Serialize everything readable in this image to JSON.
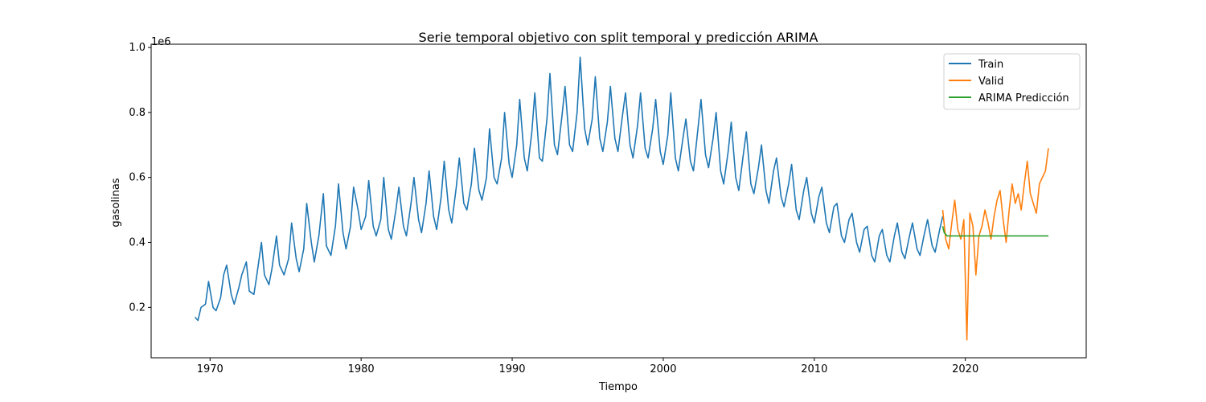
{
  "chart_data": {
    "type": "line",
    "title": "Serie temporal objetivo con split temporal y predicción ARIMA",
    "xlabel": "Tiempo",
    "ylabel": "gasolinas",
    "y_multiplier_label": "1e6",
    "xlim": [
      1966.1,
      2028.0
    ],
    "ylim": [
      0.045,
      1.01
    ],
    "x_ticks": [
      1970,
      1980,
      1990,
      2000,
      2010,
      2020
    ],
    "y_ticks": [
      0.2,
      0.4,
      0.6,
      0.8,
      1.0
    ],
    "y_tick_labels": [
      "0.2",
      "0.4",
      "0.6",
      "0.8",
      "1.0"
    ],
    "grid": false,
    "legend_position": "top-right",
    "series": [
      {
        "name": "Train",
        "color": "#1f77b4",
        "x": [
          1969.0,
          1969.2,
          1969.4,
          1969.7,
          1969.9,
          1970.2,
          1970.4,
          1970.7,
          1970.9,
          1971.1,
          1971.4,
          1971.6,
          1971.9,
          1972.1,
          1972.4,
          1972.6,
          1972.9,
          1973.1,
          1973.4,
          1973.6,
          1973.9,
          1974.1,
          1974.4,
          1974.6,
          1974.9,
          1975.2,
          1975.4,
          1975.7,
          1975.9,
          1976.2,
          1976.4,
          1976.7,
          1976.9,
          1977.2,
          1977.5,
          1977.7,
          1978.0,
          1978.3,
          1978.5,
          1978.8,
          1979.0,
          1979.3,
          1979.5,
          1979.8,
          1980.0,
          1980.3,
          1980.5,
          1980.8,
          1981.0,
          1981.3,
          1981.5,
          1981.8,
          1982.0,
          1982.3,
          1982.5,
          1982.8,
          1983.0,
          1983.3,
          1983.5,
          1983.8,
          1984.0,
          1984.3,
          1984.5,
          1984.8,
          1985.0,
          1985.3,
          1985.5,
          1985.8,
          1986.0,
          1986.3,
          1986.5,
          1986.8,
          1987.0,
          1987.3,
          1987.5,
          1987.8,
          1988.0,
          1988.3,
          1988.5,
          1988.8,
          1989.0,
          1989.3,
          1989.5,
          1989.8,
          1990.0,
          1990.3,
          1990.5,
          1990.8,
          1991.0,
          1991.3,
          1991.5,
          1991.8,
          1992.0,
          1992.3,
          1992.5,
          1992.8,
          1993.0,
          1993.3,
          1993.5,
          1993.8,
          1994.0,
          1994.3,
          1994.5,
          1994.8,
          1995.0,
          1995.3,
          1995.5,
          1995.8,
          1996.0,
          1996.3,
          1996.5,
          1996.8,
          1997.0,
          1997.3,
          1997.5,
          1997.8,
          1998.0,
          1998.3,
          1998.5,
          1998.8,
          1999.0,
          1999.3,
          1999.5,
          1999.8,
          2000.0,
          2000.3,
          2000.5,
          2000.8,
          2001.0,
          2001.3,
          2001.5,
          2001.8,
          2002.0,
          2002.3,
          2002.5,
          2002.8,
          2003.0,
          2003.3,
          2003.5,
          2003.8,
          2004.0,
          2004.3,
          2004.5,
          2004.8,
          2005.0,
          2005.3,
          2005.5,
          2005.8,
          2006.0,
          2006.3,
          2006.5,
          2006.8,
          2007.0,
          2007.3,
          2007.5,
          2007.8,
          2008.0,
          2008.3,
          2008.5,
          2008.8,
          2009.0,
          2009.3,
          2009.5,
          2009.8,
          2010.0,
          2010.3,
          2010.5,
          2010.8,
          2011.0,
          2011.3,
          2011.5,
          2011.8,
          2012.0,
          2012.3,
          2012.5,
          2012.8,
          2013.0,
          2013.3,
          2013.5,
          2013.8,
          2014.0,
          2014.3,
          2014.5,
          2014.8,
          2015.0,
          2015.3,
          2015.5,
          2015.8,
          2016.0,
          2016.3,
          2016.5,
          2016.8,
          2017.0,
          2017.3,
          2017.5,
          2017.8,
          2018.0,
          2018.3,
          2018.5
        ],
        "values": [
          0.17,
          0.16,
          0.2,
          0.21,
          0.28,
          0.2,
          0.19,
          0.23,
          0.3,
          0.33,
          0.24,
          0.21,
          0.26,
          0.3,
          0.34,
          0.25,
          0.24,
          0.3,
          0.4,
          0.3,
          0.27,
          0.32,
          0.42,
          0.33,
          0.3,
          0.35,
          0.46,
          0.35,
          0.31,
          0.38,
          0.52,
          0.4,
          0.34,
          0.42,
          0.55,
          0.39,
          0.36,
          0.45,
          0.58,
          0.43,
          0.38,
          0.45,
          0.57,
          0.5,
          0.44,
          0.48,
          0.59,
          0.45,
          0.42,
          0.47,
          0.6,
          0.44,
          0.41,
          0.5,
          0.57,
          0.45,
          0.42,
          0.52,
          0.6,
          0.47,
          0.43,
          0.52,
          0.62,
          0.48,
          0.44,
          0.54,
          0.65,
          0.5,
          0.46,
          0.57,
          0.66,
          0.52,
          0.5,
          0.58,
          0.69,
          0.56,
          0.53,
          0.6,
          0.75,
          0.6,
          0.58,
          0.66,
          0.8,
          0.64,
          0.6,
          0.7,
          0.84,
          0.66,
          0.62,
          0.74,
          0.86,
          0.66,
          0.65,
          0.78,
          0.92,
          0.7,
          0.67,
          0.79,
          0.88,
          0.7,
          0.68,
          0.8,
          0.97,
          0.75,
          0.7,
          0.78,
          0.91,
          0.72,
          0.68,
          0.77,
          0.88,
          0.72,
          0.68,
          0.79,
          0.86,
          0.7,
          0.66,
          0.76,
          0.86,
          0.69,
          0.66,
          0.75,
          0.84,
          0.68,
          0.64,
          0.73,
          0.86,
          0.66,
          0.62,
          0.72,
          0.78,
          0.65,
          0.62,
          0.75,
          0.84,
          0.67,
          0.63,
          0.72,
          0.8,
          0.62,
          0.58,
          0.68,
          0.77,
          0.6,
          0.56,
          0.67,
          0.74,
          0.58,
          0.55,
          0.63,
          0.7,
          0.56,
          0.52,
          0.62,
          0.66,
          0.54,
          0.51,
          0.58,
          0.64,
          0.5,
          0.47,
          0.56,
          0.6,
          0.49,
          0.46,
          0.54,
          0.57,
          0.46,
          0.43,
          0.51,
          0.52,
          0.42,
          0.4,
          0.47,
          0.49,
          0.4,
          0.37,
          0.44,
          0.45,
          0.36,
          0.34,
          0.42,
          0.44,
          0.36,
          0.34,
          0.42,
          0.46,
          0.37,
          0.35,
          0.42,
          0.46,
          0.38,
          0.36,
          0.43,
          0.47,
          0.39,
          0.37,
          0.44,
          0.48
        ]
      },
      {
        "name": "Valid",
        "color": "#ff7f0e",
        "x": [
          2018.5,
          2018.7,
          2018.9,
          2019.1,
          2019.3,
          2019.5,
          2019.7,
          2019.9,
          2020.1,
          2020.3,
          2020.5,
          2020.7,
          2020.9,
          2021.1,
          2021.3,
          2021.5,
          2021.7,
          2021.9,
          2022.1,
          2022.3,
          2022.5,
          2022.7,
          2022.9,
          2023.1,
          2023.3,
          2023.5,
          2023.7,
          2023.9,
          2024.1,
          2024.3,
          2024.5,
          2024.7,
          2024.9,
          2025.1,
          2025.3,
          2025.5
        ],
        "values": [
          0.5,
          0.41,
          0.38,
          0.46,
          0.53,
          0.44,
          0.41,
          0.47,
          0.1,
          0.49,
          0.45,
          0.3,
          0.42,
          0.45,
          0.5,
          0.46,
          0.41,
          0.48,
          0.53,
          0.56,
          0.47,
          0.4,
          0.5,
          0.58,
          0.52,
          0.55,
          0.5,
          0.58,
          0.65,
          0.55,
          0.52,
          0.49,
          0.58,
          0.6,
          0.62,
          0.69
        ]
      },
      {
        "name": "ARIMA Predicción",
        "color": "#2ca02c",
        "x": [
          2018.5,
          2018.6,
          2018.8,
          2019.0,
          2020.0,
          2021.0,
          2022.0,
          2023.0,
          2024.0,
          2025.0,
          2025.5
        ],
        "values": [
          0.45,
          0.43,
          0.42,
          0.42,
          0.42,
          0.42,
          0.42,
          0.42,
          0.42,
          0.42,
          0.42
        ]
      }
    ]
  }
}
